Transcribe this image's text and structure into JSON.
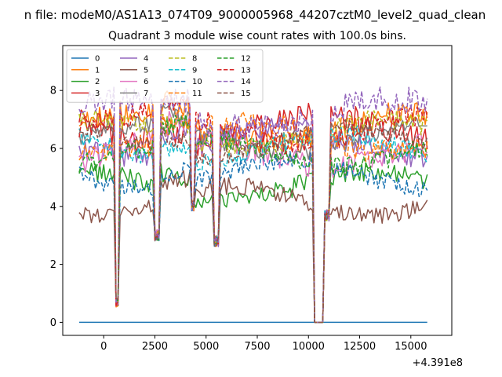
{
  "chart_data": {
    "type": "line",
    "suptitle": "n file: modeM0/AS1A13_074T09_9000005968_44207cztM0_level2_quad_clean",
    "title": "Quadrant 3 module wise count rates with 100.0s bins.",
    "xlabel": "",
    "ylabel": "",
    "x_offset_label": "+4.391e8",
    "xlim": [
      -2000,
      17000
    ],
    "ylim": [
      -0.45,
      9.55
    ],
    "xticks": [
      0,
      2500,
      5000,
      7500,
      10000,
      12500,
      15000
    ],
    "yticks": [
      0,
      2,
      4,
      6,
      8
    ],
    "x_start": -1200,
    "x_step": 100,
    "n_points": 171,
    "gaps": [
      [
        600,
        700,
        0.5
      ],
      [
        2500,
        2700,
        2.8
      ],
      [
        4300,
        4400,
        3.8
      ],
      [
        5400,
        5600,
        2.6
      ],
      [
        10300,
        10500,
        0.0
      ],
      [
        10500,
        10800,
        0.0
      ],
      [
        10800,
        11000,
        3.5
      ]
    ],
    "legend": {
      "location": "upper left",
      "ncol": 4
    },
    "series": [
      {
        "name": "0",
        "color": "#1f77b4",
        "dash": "solid",
        "level": 0.0,
        "noise": 0.0
      },
      {
        "name": "1",
        "color": "#ff7f0e",
        "dash": "solid",
        "level": 6.7,
        "noise": 0.45
      },
      {
        "name": "2",
        "color": "#2ca02c",
        "dash": "solid",
        "level": 4.7,
        "noise": 0.35
      },
      {
        "name": "3",
        "color": "#d62728",
        "dash": "solid",
        "level": 6.6,
        "noise": 0.5
      },
      {
        "name": "4",
        "color": "#9467bd",
        "dash": "solid",
        "level": 6.2,
        "noise": 0.4
      },
      {
        "name": "5",
        "color": "#8c564b",
        "dash": "solid",
        "level": 4.2,
        "noise": 0.3
      },
      {
        "name": "6",
        "color": "#e377c2",
        "dash": "solid",
        "level": 5.9,
        "noise": 0.45
      },
      {
        "name": "7",
        "color": "#7f7f7f",
        "dash": "solid",
        "level": 6.3,
        "noise": 0.3
      },
      {
        "name": "8",
        "color": "#bcbd22",
        "dash": "dashed",
        "level": 6.5,
        "noise": 0.35
      },
      {
        "name": "9",
        "color": "#17becf",
        "dash": "dashed",
        "level": 6.0,
        "noise": 0.35
      },
      {
        "name": "10",
        "color": "#1f77b4",
        "dash": "dashed",
        "level": 5.1,
        "noise": 0.3
      },
      {
        "name": "11",
        "color": "#ff7f0e",
        "dash": "dashed",
        "level": 6.4,
        "noise": 0.4
      },
      {
        "name": "12",
        "color": "#2ca02c",
        "dash": "dashed",
        "level": 5.9,
        "noise": 0.35
      },
      {
        "name": "13",
        "color": "#d62728",
        "dash": "dashed",
        "level": 6.7,
        "noise": 0.4
      },
      {
        "name": "14",
        "color": "#9467bd",
        "dash": "dashed",
        "level": 7.2,
        "noise": 0.45
      },
      {
        "name": "15",
        "color": "#8c564b",
        "dash": "dashed",
        "level": 6.2,
        "noise": 0.3
      }
    ]
  }
}
